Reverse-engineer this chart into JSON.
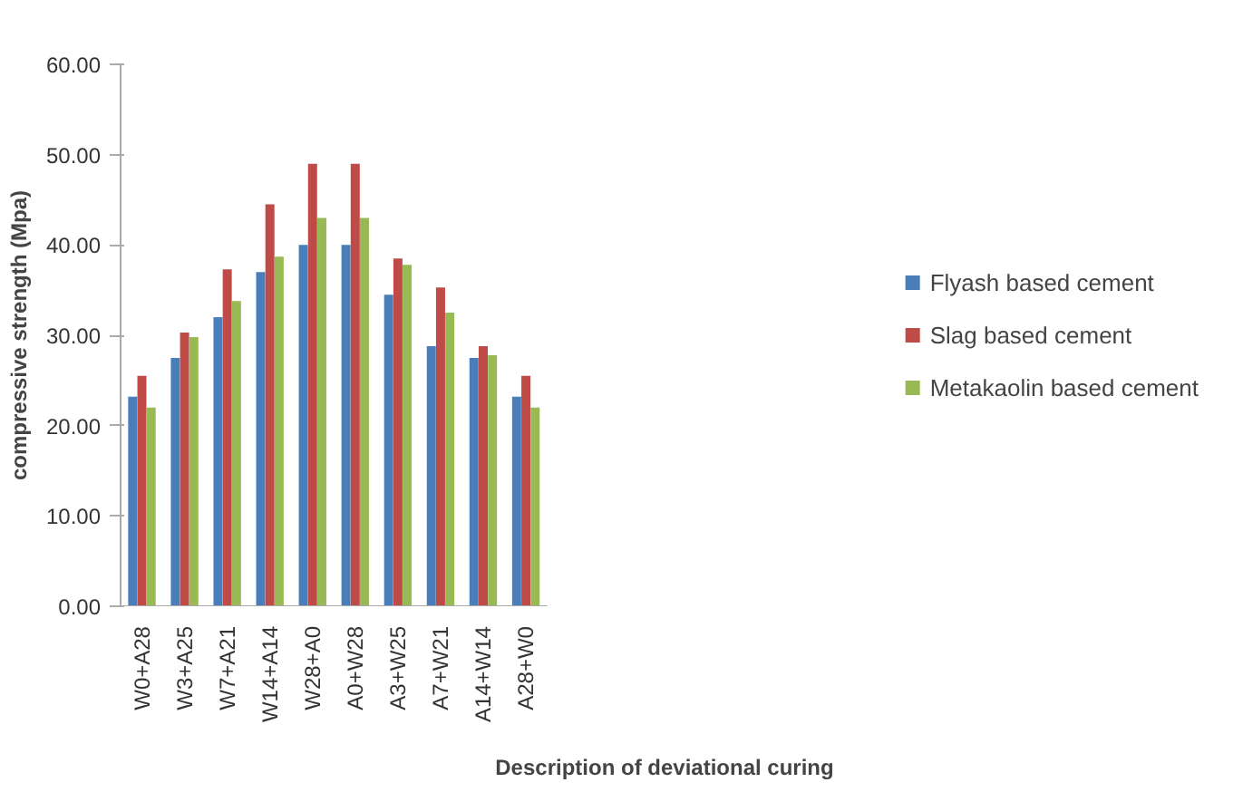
{
  "chart_data": {
    "type": "bar",
    "xlabel": "Description of deviational curing",
    "ylabel": "compressive strength (Mpa)",
    "categories": [
      "W0+A28",
      "W3+A25",
      "W7+A21",
      "W14+A14",
      "W28+A0",
      "A0+W28",
      "A3+W25",
      "A7+W21",
      "A14+W14",
      "A28+W0"
    ],
    "series": [
      {
        "name": "Flyash based cement",
        "color": "#4a7ebb",
        "values": [
          23.2,
          27.5,
          32.0,
          37.0,
          40.0,
          40.0,
          34.5,
          28.8,
          27.5,
          23.2
        ]
      },
      {
        "name": "Slag based cement",
        "color": "#be4b48",
        "values": [
          25.5,
          30.3,
          37.3,
          44.5,
          49.0,
          49.0,
          38.5,
          35.3,
          28.8,
          25.5
        ]
      },
      {
        "name": "Metakaolin based cement",
        "color": "#98b954",
        "values": [
          22.0,
          29.8,
          33.8,
          38.7,
          43.0,
          43.0,
          37.8,
          32.5,
          27.8,
          22.0
        ]
      }
    ],
    "ylim": [
      0,
      60
    ],
    "yticks": [
      {
        "value": 0,
        "label": "0.00"
      },
      {
        "value": 10,
        "label": "10.00"
      },
      {
        "value": 20,
        "label": "20.00"
      },
      {
        "value": 30,
        "label": "30.00"
      },
      {
        "value": 40,
        "label": "40.00"
      },
      {
        "value": 50,
        "label": "50.00"
      },
      {
        "value": 60,
        "label": "60.00"
      }
    ],
    "grid": false,
    "legend": "right"
  }
}
